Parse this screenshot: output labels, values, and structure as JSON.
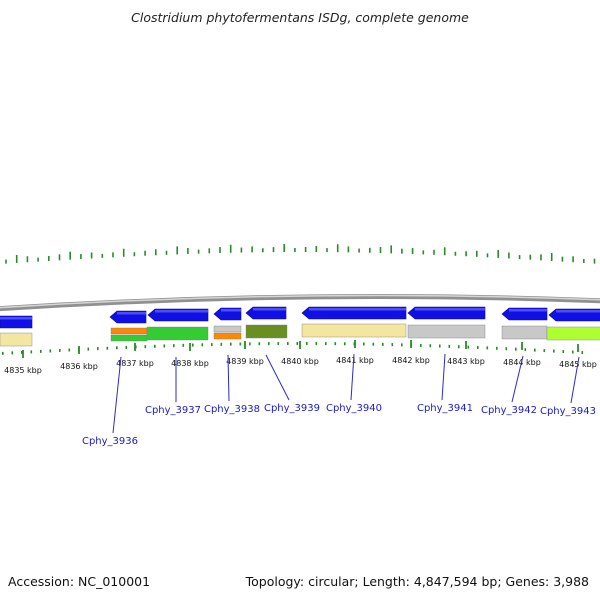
{
  "title": "Clostridium phytofermentans ISDg, complete genome",
  "footer": {
    "accession": "Accession: NC_010001",
    "summary": "Topology: circular; Length: 4,847,594 bp; Genes: 3,988"
  },
  "colors": {
    "gene_arrow": "#1010e6",
    "backbone": "#909090",
    "tick": "#2a8a2a",
    "label": "#1a1acc",
    "cog_track_colors": [
      "#f2e6a0",
      "#ff8800",
      "#33cc33",
      "#c8c8c8",
      "#6b8e23",
      "#adff2f"
    ]
  },
  "scale": {
    "ticks": [
      "4835 kbp",
      "4836 kbp",
      "4837 kbp",
      "4838 kbp",
      "4839 kbp",
      "4840 kbp",
      "4841 kbp",
      "4842 kbp",
      "4843 kbp",
      "4844 kbp",
      "4845 kbp"
    ]
  },
  "genes": [
    {
      "id": "Cphy_3936",
      "label": "Cphy_3936",
      "cog_color": "#ff8800"
    },
    {
      "id": "Cphy_3937",
      "label": "Cphy_3937",
      "cog_color": "#33cc33"
    },
    {
      "id": "Cphy_3938",
      "label": "Cphy_3938",
      "cog_color": "#ff8800"
    },
    {
      "id": "Cphy_3939",
      "label": "Cphy_3939",
      "cog_color": "#6b8e23"
    },
    {
      "id": "Cphy_3940",
      "label": "Cphy_3940",
      "cog_color": "#f2e6a0"
    },
    {
      "id": "Cphy_3941",
      "label": "Cphy_3941",
      "cog_color": "#c8c8c8"
    },
    {
      "id": "Cphy_3942",
      "label": "Cphy_3942",
      "cog_color": "#c8c8c8"
    },
    {
      "id": "Cphy_3943",
      "label": "Cphy_3943",
      "cog_color": "#adff2f"
    }
  ]
}
